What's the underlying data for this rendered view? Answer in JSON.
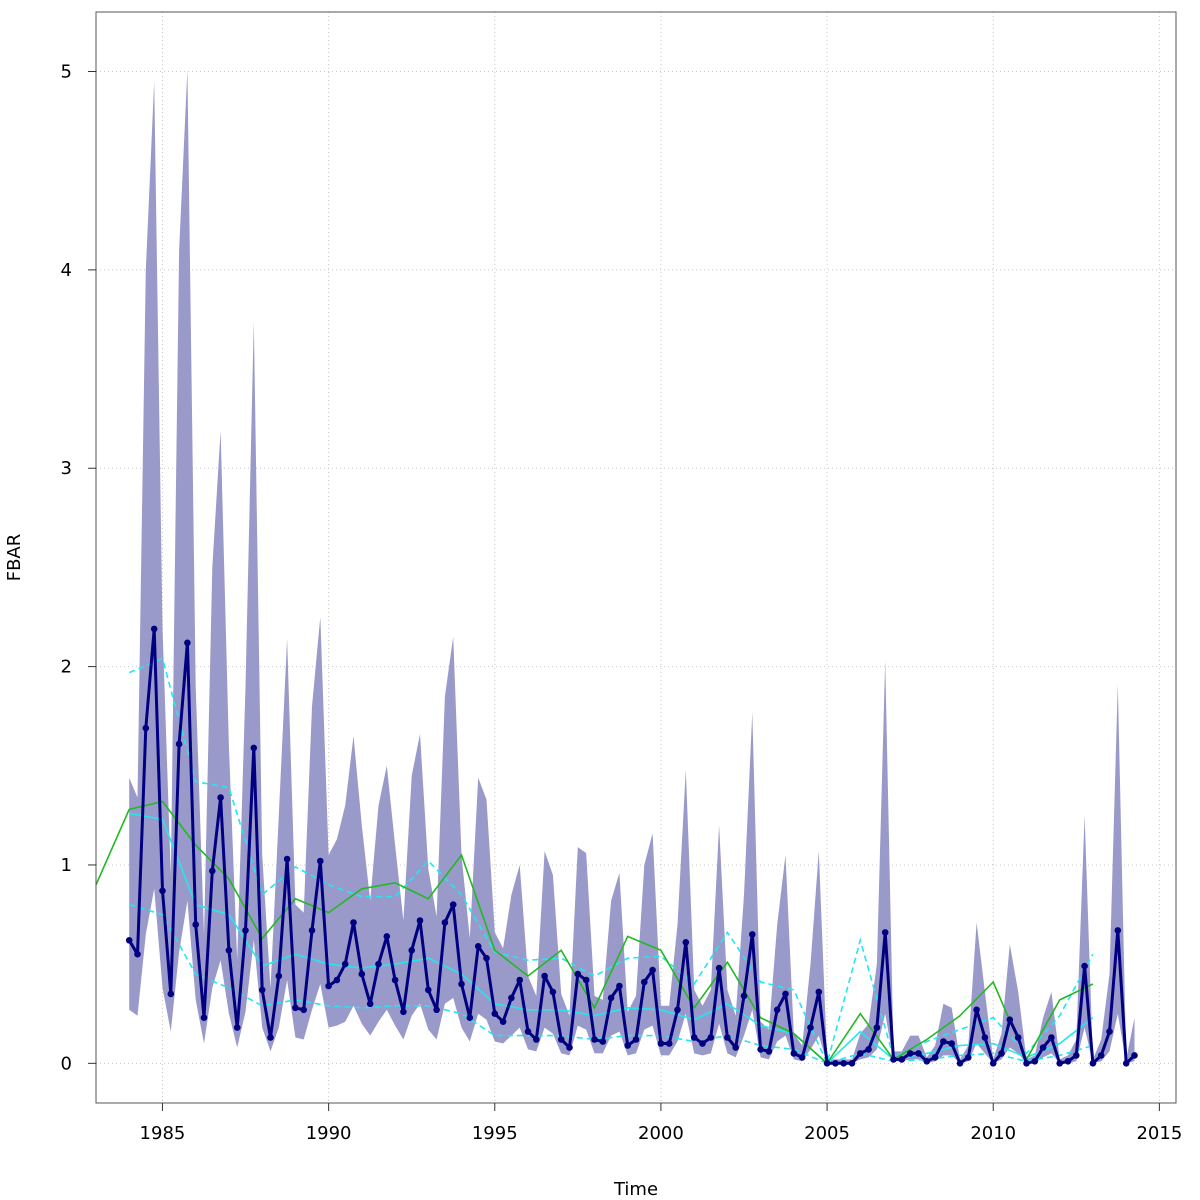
{
  "chart_data": {
    "type": "line",
    "title": "",
    "xlabel": "Time",
    "ylabel": "FBAR",
    "xlim": [
      1983,
      2015.5
    ],
    "ylim": [
      -0.2,
      5.3
    ],
    "x_ticks": [
      1985,
      1990,
      1995,
      2000,
      2005,
      2010,
      2015
    ],
    "y_ticks": [
      0,
      1,
      2,
      3,
      4,
      5
    ],
    "grid": true,
    "colors": {
      "band": "#9a9aca",
      "quarterly": "#000080",
      "green": "#22b822",
      "cyan": "#22e6f0",
      "grid": "#c8c8c8"
    },
    "series": [
      {
        "kind": "quarterly_median",
        "x": [
          1984.0,
          1984.25,
          1984.5,
          1984.75,
          1985.0,
          1985.25,
          1985.5,
          1985.75,
          1986.0,
          1986.25,
          1986.5,
          1986.75,
          1987.0,
          1987.25,
          1987.5,
          1987.75,
          1988.0,
          1988.25,
          1988.5,
          1988.75,
          1989.0,
          1989.25,
          1989.5,
          1989.75,
          1990.0,
          1990.25,
          1990.5,
          1990.75,
          1991.0,
          1991.25,
          1991.5,
          1991.75,
          1992.0,
          1992.25,
          1992.5,
          1992.75,
          1993.0,
          1993.25,
          1993.5,
          1993.75,
          1994.0,
          1994.25,
          1994.5,
          1994.75,
          1995.0,
          1995.25,
          1995.5,
          1995.75,
          1996.0,
          1996.25,
          1996.5,
          1996.75,
          1997.0,
          1997.25,
          1997.5,
          1997.75,
          1998.0,
          1998.25,
          1998.5,
          1998.75,
          1999.0,
          1999.25,
          1999.5,
          1999.75,
          2000.0,
          2000.25,
          2000.5,
          2000.75,
          2001.0,
          2001.25,
          2001.5,
          2001.75,
          2002.0,
          2002.25,
          2002.5,
          2002.75,
          2003.0,
          2003.25,
          2003.5,
          2003.75,
          2004.0,
          2004.25,
          2004.5,
          2004.75,
          2005.0,
          2005.25,
          2005.5,
          2005.75,
          2006.0,
          2006.25,
          2006.5,
          2006.75,
          2007.0,
          2007.25,
          2007.5,
          2007.75,
          2008.0,
          2008.25,
          2008.5,
          2008.75,
          2009.0,
          2009.25,
          2009.5,
          2009.75,
          2010.0,
          2010.25,
          2010.5,
          2010.75,
          2011.0,
          2011.25,
          2011.5,
          2011.75,
          2012.0,
          2012.25,
          2012.5,
          2012.75,
          2013.0,
          2013.25,
          2013.5,
          2013.75,
          2014.0,
          2014.25
        ],
        "values": [
          0.62,
          0.55,
          1.69,
          2.19,
          0.87,
          0.35,
          1.61,
          2.12,
          0.7,
          0.23,
          0.97,
          1.34,
          0.57,
          0.18,
          0.67,
          1.59,
          0.37,
          0.13,
          0.44,
          1.03,
          0.28,
          0.27,
          0.67,
          1.02,
          0.39,
          0.42,
          0.5,
          0.71,
          0.45,
          0.3,
          0.5,
          0.64,
          0.42,
          0.26,
          0.57,
          0.72,
          0.37,
          0.27,
          0.71,
          0.8,
          0.4,
          0.23,
          0.59,
          0.53,
          0.25,
          0.21,
          0.33,
          0.42,
          0.16,
          0.12,
          0.44,
          0.36,
          0.12,
          0.08,
          0.45,
          0.42,
          0.12,
          0.11,
          0.33,
          0.39,
          0.09,
          0.12,
          0.41,
          0.47,
          0.1,
          0.1,
          0.27,
          0.61,
          0.13,
          0.1,
          0.13,
          0.48,
          0.13,
          0.08,
          0.34,
          0.65,
          0.07,
          0.06,
          0.27,
          0.35,
          0.05,
          0.03,
          0.18,
          0.36,
          0.0,
          0.0,
          0.0,
          0.0,
          0.05,
          0.07,
          0.18,
          0.66,
          0.02,
          0.02,
          0.05,
          0.05,
          0.01,
          0.03,
          0.11,
          0.1,
          0.0,
          0.03,
          0.27,
          0.13,
          0.0,
          0.05,
          0.22,
          0.13,
          0.0,
          0.01,
          0.08,
          0.13,
          0.0,
          0.01,
          0.04,
          0.49,
          0.0,
          0.04,
          0.16,
          0.67,
          0.0,
          0.04
        ],
        "lower": [
          0.27,
          0.24,
          0.65,
          0.88,
          0.38,
          0.16,
          0.56,
          0.82,
          0.32,
          0.1,
          0.38,
          0.52,
          0.25,
          0.08,
          0.26,
          0.62,
          0.18,
          0.06,
          0.18,
          0.42,
          0.13,
          0.12,
          0.27,
          0.4,
          0.18,
          0.19,
          0.21,
          0.29,
          0.2,
          0.14,
          0.21,
          0.27,
          0.19,
          0.12,
          0.24,
          0.3,
          0.17,
          0.12,
          0.3,
          0.33,
          0.18,
          0.11,
          0.25,
          0.22,
          0.11,
          0.1,
          0.14,
          0.18,
          0.07,
          0.06,
          0.18,
          0.15,
          0.05,
          0.04,
          0.19,
          0.17,
          0.05,
          0.05,
          0.14,
          0.16,
          0.04,
          0.05,
          0.17,
          0.19,
          0.04,
          0.04,
          0.11,
          0.25,
          0.05,
          0.04,
          0.05,
          0.2,
          0.05,
          0.03,
          0.14,
          0.27,
          0.03,
          0.02,
          0.11,
          0.14,
          0.02,
          0.01,
          0.07,
          0.14,
          0.0,
          0.0,
          0.0,
          0.0,
          0.02,
          0.03,
          0.07,
          0.25,
          0.01,
          0.01,
          0.02,
          0.02,
          0.0,
          0.01,
          0.04,
          0.04,
          0.0,
          0.01,
          0.1,
          0.05,
          0.0,
          0.02,
          0.08,
          0.05,
          0.0,
          0.0,
          0.03,
          0.05,
          0.0,
          0.0,
          0.01,
          0.18,
          0.0,
          0.01,
          0.06,
          0.25,
          0.0,
          0.01
        ],
        "upper": [
          1.44,
          1.34,
          4.0,
          4.95,
          2.2,
          0.95,
          4.1,
          5.01,
          1.9,
          0.65,
          2.5,
          3.19,
          1.6,
          0.52,
          1.9,
          3.74,
          1.05,
          0.38,
          1.25,
          2.14,
          0.8,
          0.76,
          1.8,
          2.25,
          1.05,
          1.13,
          1.3,
          1.65,
          1.2,
          0.82,
          1.3,
          1.5,
          1.1,
          0.72,
          1.45,
          1.66,
          0.98,
          0.74,
          1.85,
          2.15,
          1.05,
          0.63,
          1.44,
          1.33,
          0.66,
          0.58,
          0.85,
          1.0,
          0.44,
          0.34,
          1.07,
          0.95,
          0.35,
          0.24,
          1.09,
          1.06,
          0.34,
          0.32,
          0.82,
          0.96,
          0.26,
          0.34,
          1.0,
          1.16,
          0.29,
          0.29,
          0.7,
          1.48,
          0.37,
          0.29,
          0.37,
          1.2,
          0.37,
          0.24,
          0.85,
          1.77,
          0.21,
          0.17,
          0.7,
          1.05,
          0.15,
          0.09,
          0.5,
          1.07,
          0.02,
          0.02,
          0.02,
          0.02,
          0.15,
          0.2,
          0.5,
          2.03,
          0.06,
          0.06,
          0.14,
          0.14,
          0.03,
          0.09,
          0.3,
          0.28,
          0.02,
          0.09,
          0.71,
          0.36,
          0.02,
          0.15,
          0.6,
          0.36,
          0.02,
          0.04,
          0.23,
          0.36,
          0.02,
          0.04,
          0.12,
          1.25,
          0.02,
          0.12,
          0.45,
          1.91,
          0.02,
          0.23
        ]
      },
      {
        "kind": "annual_green",
        "x": [
          1983,
          1984,
          1985,
          1986,
          1987,
          1988,
          1989,
          1990,
          1991,
          1992,
          1993,
          1994,
          1995,
          1996,
          1997,
          1998,
          1999,
          2000,
          2001,
          2002,
          2003,
          2004,
          2005,
          2006,
          2007,
          2008,
          2009,
          2010,
          2011,
          2012,
          2013
        ],
        "values": [
          0.9,
          1.28,
          1.32,
          1.1,
          0.93,
          0.63,
          0.83,
          0.76,
          0.88,
          0.91,
          0.83,
          1.05,
          0.57,
          0.44,
          0.57,
          0.28,
          0.64,
          0.57,
          0.28,
          0.51,
          0.23,
          0.15,
          0.0,
          0.25,
          0.02,
          0.12,
          0.24,
          0.41,
          0.02,
          0.32,
          0.4
        ]
      },
      {
        "kind": "annual_cyan_median",
        "x": [
          1984,
          1985,
          1986,
          1987,
          1988,
          1989,
          1990,
          1991,
          1992,
          1993,
          1994,
          1995,
          1996,
          1997,
          1998,
          1999,
          2000,
          2001,
          2002,
          2003,
          2004,
          2005,
          2006,
          2007,
          2008,
          2009,
          2010,
          2011,
          2012,
          2013
        ],
        "values": [
          1.26,
          1.23,
          0.8,
          0.75,
          0.49,
          0.55,
          0.5,
          0.48,
          0.5,
          0.53,
          0.45,
          0.3,
          0.27,
          0.27,
          0.24,
          0.28,
          0.27,
          0.22,
          0.3,
          0.19,
          0.15,
          0.0,
          0.16,
          0.02,
          0.05,
          0.09,
          0.1,
          0.03,
          0.1,
          0.23
        ]
      },
      {
        "kind": "annual_cyan_upper",
        "x": [
          1984,
          1985,
          1986,
          1987,
          1988,
          1989,
          1990,
          1991,
          1992,
          1993,
          1994,
          1995,
          1996,
          1997,
          1998,
          1999,
          2000,
          2001,
          2002,
          2003,
          2004,
          2005,
          2006,
          2007,
          2008,
          2009,
          2010,
          2011,
          2012,
          2013
        ],
        "values": [
          1.97,
          2.04,
          1.42,
          1.39,
          0.85,
          0.99,
          0.9,
          0.84,
          0.84,
          1.02,
          0.85,
          0.56,
          0.52,
          0.53,
          0.44,
          0.53,
          0.54,
          0.4,
          0.66,
          0.41,
          0.37,
          0.0,
          0.62,
          0.03,
          0.11,
          0.17,
          0.23,
          0.05,
          0.24,
          0.55
        ]
      },
      {
        "kind": "annual_cyan_lower",
        "x": [
          1984,
          1985,
          1986,
          1987,
          1988,
          1989,
          1990,
          1991,
          1992,
          1993,
          1994,
          1995,
          1996,
          1997,
          1998,
          1999,
          2000,
          2001,
          2002,
          2003,
          2004,
          2005,
          2006,
          2007,
          2008,
          2009,
          2010,
          2011,
          2012,
          2013
        ],
        "values": [
          0.8,
          0.75,
          0.45,
          0.38,
          0.29,
          0.32,
          0.29,
          0.28,
          0.29,
          0.29,
          0.25,
          0.14,
          0.14,
          0.14,
          0.12,
          0.14,
          0.14,
          0.11,
          0.14,
          0.09,
          0.07,
          0.0,
          0.05,
          0.01,
          0.02,
          0.04,
          0.05,
          0.01,
          0.04,
          0.09
        ]
      }
    ]
  }
}
